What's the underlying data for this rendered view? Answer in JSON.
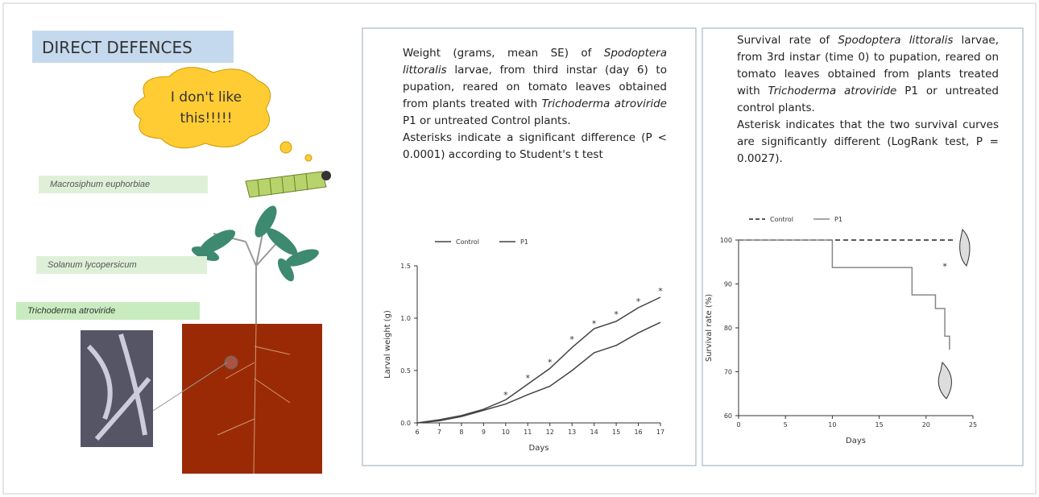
{
  "left_panel": {
    "title": "DIRECT DEFENCES",
    "speech": [
      "I don't  like",
      "this!!!!!"
    ],
    "labels": [
      "Macrosiphum euphorbiae",
      "Solanum lycopersicum",
      "Trichoderma atroviride"
    ]
  },
  "middle_panel": {
    "caption": [
      [
        {
          "text": "Weight (grams, mean  SE) of "
        },
        {
          "text": "Spodoptera littoralis",
          "italic": true
        },
        {
          "text": " larvae, from third instar (day 6) to pupation, reared on tomato leaves obtained from plants treated with "
        },
        {
          "text": "Trichoderma atroviride",
          "italic": true
        },
        {
          "text": " P1 or untreated Control plants."
        }
      ],
      [
        {
          "text": "Asterisks indicate a significant difference (P < 0.0001) according to Student's t test"
        }
      ]
    ]
  },
  "right_panel": {
    "caption": [
      [
        {
          "text": "Survival rate of "
        },
        {
          "text": "Spodoptera littoralis",
          "italic": true
        },
        {
          "text": " larvae, from 3rd instar (time 0) to pupation, reared on tomato leaves obtained from plants treated with "
        },
        {
          "text": "Trichoderma atroviride",
          "italic": true
        },
        {
          "text": " P1 or untreated control plants."
        }
      ],
      [
        {
          "text": "Asterisk indicates that the two survival curves are significantly different (LogRank test, P = 0.0027)."
        }
      ]
    ]
  },
  "chart_data": [
    {
      "type": "line",
      "x_label": "Days",
      "y_label": "Larval weight (g)",
      "x": [
        6,
        7,
        8,
        9,
        10,
        11,
        12,
        13,
        14,
        15,
        16,
        17
      ],
      "xlim": [
        6,
        17
      ],
      "xticks": [
        6,
        7,
        8,
        9,
        10,
        11,
        12,
        13,
        14,
        15,
        16,
        17
      ],
      "ylim": [
        0,
        1.5
      ],
      "yticks": [
        {
          "value": 0,
          "label": "0.0"
        },
        {
          "value": 0.5,
          "label": "0.5"
        },
        {
          "value": 1,
          "label": "1.0"
        },
        {
          "value": 1.5,
          "label": "1.5"
        }
      ],
      "series": [
        {
          "name": "Control",
          "color": "#444444",
          "values": [
            0,
            0.03,
            0.07,
            0.13,
            0.22,
            0.37,
            0.52,
            0.72,
            0.9,
            0.97,
            1.1,
            1.2
          ]
        },
        {
          "name": "P1",
          "color": "#444444",
          "values": [
            0,
            0.02,
            0.06,
            0.12,
            0.18,
            0.27,
            0.35,
            0.5,
            0.67,
            0.74,
            0.86,
            0.96
          ]
        }
      ],
      "annotations": [
        {
          "text": "*",
          "x": 10,
          "y": 0.27
        },
        {
          "text": "*",
          "x": 11,
          "y": 0.43
        },
        {
          "text": "*",
          "x": 12,
          "y": 0.58
        },
        {
          "text": "*",
          "x": 13,
          "y": 0.8
        },
        {
          "text": "*",
          "x": 14,
          "y": 0.95
        },
        {
          "text": "*",
          "x": 15,
          "y": 1.04
        },
        {
          "text": "*",
          "x": 16,
          "y": 1.16
        },
        {
          "text": "*",
          "x": 17,
          "y": 1.26
        }
      ]
    },
    {
      "type": "line",
      "x_label": "Days",
      "y_label": "Survival rate (%)",
      "xlim": [
        0,
        25
      ],
      "xticks": [
        0,
        5,
        10,
        15,
        20,
        25
      ],
      "ylim": [
        60,
        100
      ],
      "yticks": [
        60,
        70,
        80,
        90,
        100
      ],
      "series": [
        {
          "name": "Control",
          "color": "#222222",
          "dashed": true,
          "x": [
            0,
            23
          ],
          "values": [
            100,
            100
          ]
        },
        {
          "name": "P1",
          "color": "#888888",
          "x": [
            0,
            10,
            10,
            18.5,
            18.5,
            21,
            21,
            22,
            22,
            22.5,
            22.5
          ],
          "values": [
            100,
            100,
            93.75,
            93.75,
            87.5,
            87.5,
            84.4,
            84.4,
            78.1,
            78.1,
            75
          ]
        }
      ],
      "annotations": [
        {
          "text": "*",
          "x": 22,
          "y": 94
        }
      ]
    }
  ]
}
